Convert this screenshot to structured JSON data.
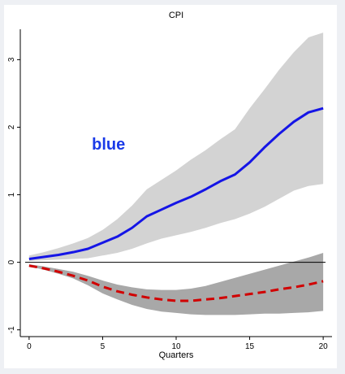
{
  "chart_data": {
    "type": "area",
    "title": "CPI",
    "xlabel": "Quarters",
    "ylabel": "",
    "xlim": [
      -0.6,
      20.6
    ],
    "ylim": [
      -1.1,
      3.45
    ],
    "xticks": [
      0,
      5,
      10,
      15,
      20
    ],
    "yticks": [
      -1,
      0,
      1,
      2,
      3
    ],
    "x": [
      0,
      1,
      2,
      3,
      4,
      5,
      6,
      7,
      8,
      9,
      10,
      11,
      12,
      13,
      14,
      15,
      16,
      17,
      18,
      19,
      20
    ],
    "series": [
      {
        "style": "solid",
        "color": "#1515e6",
        "values": [
          0.05,
          0.08,
          0.11,
          0.15,
          0.2,
          0.29,
          0.38,
          0.51,
          0.68,
          0.78,
          0.88,
          0.97,
          1.08,
          1.2,
          1.3,
          1.48,
          1.7,
          1.9,
          2.08,
          2.22,
          2.28
        ],
        "band_lower": [
          0.02,
          0.03,
          0.04,
          0.05,
          0.06,
          0.1,
          0.14,
          0.2,
          0.28,
          0.35,
          0.4,
          0.45,
          0.51,
          0.58,
          0.64,
          0.72,
          0.82,
          0.94,
          1.06,
          1.13,
          1.16
        ],
        "band_upper": [
          0.1,
          0.15,
          0.21,
          0.28,
          0.36,
          0.48,
          0.64,
          0.84,
          1.08,
          1.22,
          1.36,
          1.52,
          1.66,
          1.82,
          1.97,
          2.28,
          2.56,
          2.85,
          3.11,
          3.33,
          3.4
        ],
        "band_color": "#d3d3d3"
      },
      {
        "style": "dashed",
        "color": "#d10000",
        "values": [
          -0.05,
          -0.09,
          -0.14,
          -0.2,
          -0.27,
          -0.36,
          -0.43,
          -0.48,
          -0.52,
          -0.55,
          -0.57,
          -0.57,
          -0.55,
          -0.53,
          -0.5,
          -0.47,
          -0.44,
          -0.4,
          -0.37,
          -0.33,
          -0.28
        ],
        "band_lower": [
          -0.06,
          -0.11,
          -0.17,
          -0.24,
          -0.34,
          -0.46,
          -0.55,
          -0.63,
          -0.69,
          -0.73,
          -0.75,
          -0.77,
          -0.78,
          -0.78,
          -0.78,
          -0.77,
          -0.76,
          -0.76,
          -0.75,
          -0.74,
          -0.72
        ],
        "band_upper": [
          -0.03,
          -0.06,
          -0.1,
          -0.14,
          -0.2,
          -0.27,
          -0.33,
          -0.37,
          -0.4,
          -0.41,
          -0.41,
          -0.39,
          -0.35,
          -0.29,
          -0.23,
          -0.17,
          -0.11,
          -0.05,
          0.01,
          0.07,
          0.14
        ],
        "band_color": "#a8a8a8"
      }
    ],
    "zero_line": 0,
    "annotations": [
      {
        "text": "blue",
        "x": 5.4,
        "y": 1.75,
        "color": "#1a3ae8"
      }
    ],
    "grid": false
  }
}
